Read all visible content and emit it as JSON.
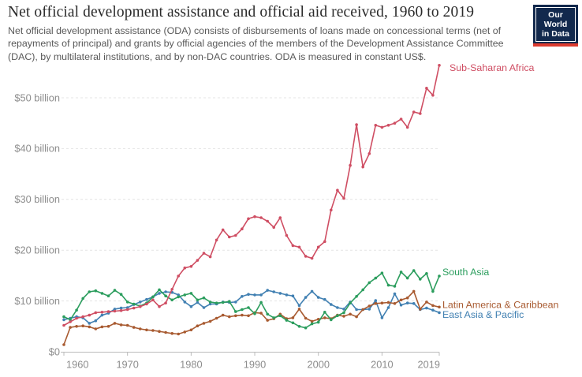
{
  "header": {
    "title": "Net official development assistance and official aid received, 1960 to 2019",
    "subtitle_lines": [
      "Net official development assistance (ODA) consists of disbursements of loans made on concessional terms (net of",
      "repayments of principal) and grants by official agencies of the members of the Development Assistance Committee",
      "(DAC), by multilateral institutions, and by non-DAC countries. ODA is measured in constant US$."
    ]
  },
  "logo": {
    "line1": "Our World",
    "line2": "in Data",
    "bg_color": "#12294d",
    "stripe_color": "#dc3b2f"
  },
  "chart_data": {
    "type": "line",
    "title": "Net official development assistance and official aid received, 1960 to 2019",
    "xlabel": "",
    "ylabel": "",
    "unit": "billion constant US$",
    "xlim": [
      1960,
      2019
    ],
    "ylim": [
      0,
      57
    ],
    "grid": "horizontal dashed",
    "legend_position": "right edge of lines",
    "x": [
      1960,
      1961,
      1962,
      1963,
      1964,
      1965,
      1966,
      1967,
      1968,
      1969,
      1970,
      1971,
      1972,
      1973,
      1974,
      1975,
      1976,
      1977,
      1978,
      1979,
      1980,
      1981,
      1982,
      1983,
      1984,
      1985,
      1986,
      1987,
      1988,
      1989,
      1990,
      1991,
      1992,
      1993,
      1994,
      1995,
      1996,
      1997,
      1998,
      1999,
      2000,
      2001,
      2002,
      2003,
      2004,
      2005,
      2006,
      2007,
      2008,
      2009,
      2010,
      2011,
      2012,
      2013,
      2014,
      2015,
      2016,
      2017,
      2018,
      2019
    ],
    "x_ticks": [
      {
        "year": 1960,
        "label": "1960"
      },
      {
        "year": 1970,
        "label": "1970"
      },
      {
        "year": 1980,
        "label": "1980"
      },
      {
        "year": 1990,
        "label": "1990"
      },
      {
        "year": 2000,
        "label": "2000"
      },
      {
        "year": 2010,
        "label": "2010"
      },
      {
        "year": 2019,
        "label": "2019"
      }
    ],
    "y_ticks": [
      {
        "value": 0,
        "label": "$0"
      },
      {
        "value": 10,
        "label": "$10 billion"
      },
      {
        "value": 20,
        "label": "$20 billion"
      },
      {
        "value": 30,
        "label": "$30 billion"
      },
      {
        "value": 40,
        "label": "$40 billion"
      },
      {
        "value": 50,
        "label": "$50 billion"
      }
    ],
    "series": [
      {
        "name": "Sub-Saharan Africa",
        "color": "#cf4e63",
        "values": [
          5.2,
          5.9,
          6.6,
          6.9,
          7.2,
          7.7,
          7.8,
          7.9,
          8.0,
          8.1,
          8.3,
          8.6,
          8.9,
          9.4,
          10.2,
          8.9,
          9.6,
          12.3,
          14.9,
          16.5,
          16.8,
          18.0,
          19.4,
          18.7,
          22.0,
          24.0,
          22.6,
          22.9,
          24.2,
          26.2,
          26.6,
          26.4,
          25.7,
          24.5,
          26.4,
          22.9,
          20.9,
          20.6,
          18.8,
          18.4,
          20.6,
          21.7,
          27.9,
          31.8,
          30.2,
          36.7,
          44.7,
          36.4,
          39.0,
          44.6,
          44.2,
          44.6,
          45.0,
          45.8,
          44.2,
          47.2,
          46.9,
          51.9,
          50.5,
          56.4
        ]
      },
      {
        "name": "South Asia",
        "color": "#2b9d5d",
        "values": [
          6.9,
          6.3,
          8.2,
          10.5,
          11.8,
          12.0,
          11.5,
          11.0,
          12.1,
          11.3,
          9.8,
          9.4,
          9.0,
          9.6,
          10.8,
          12.2,
          11.0,
          10.2,
          10.8,
          11.2,
          11.5,
          10.2,
          10.6,
          9.8,
          9.6,
          9.7,
          9.9,
          7.9,
          8.3,
          8.7,
          7.5,
          9.7,
          7.4,
          6.7,
          7.1,
          6.2,
          5.7,
          5.0,
          4.7,
          5.5,
          5.8,
          7.8,
          6.3,
          7.1,
          7.7,
          9.6,
          10.9,
          12.2,
          13.6,
          14.5,
          15.5,
          13.1,
          12.9,
          15.7,
          14.5,
          16.0,
          14.3,
          15.4,
          11.9,
          14.9
        ]
      },
      {
        "name": "Latin America & Caribbean",
        "color": "#a85a30",
        "values": [
          1.4,
          4.8,
          5.0,
          5.1,
          4.9,
          4.5,
          4.9,
          5.0,
          5.6,
          5.3,
          5.2,
          4.8,
          4.5,
          4.3,
          4.2,
          4.0,
          3.8,
          3.6,
          3.5,
          3.9,
          4.3,
          5.1,
          5.6,
          6.0,
          6.6,
          7.2,
          6.9,
          7.1,
          7.2,
          7.1,
          7.7,
          7.6,
          6.2,
          6.5,
          7.4,
          6.5,
          6.7,
          8.4,
          6.6,
          6.0,
          6.4,
          6.7,
          6.5,
          7.2,
          7.0,
          7.4,
          6.9,
          8.3,
          9.0,
          9.5,
          9.6,
          9.7,
          9.5,
          10.2,
          10.6,
          11.9,
          8.4,
          9.8,
          9.1,
          8.8
        ]
      },
      {
        "name": "East Asia & Pacific",
        "color": "#4180b2",
        "values": [
          6.3,
          6.6,
          6.9,
          6.7,
          5.6,
          6.1,
          7.2,
          7.6,
          8.4,
          8.6,
          8.7,
          9.3,
          9.8,
          10.3,
          10.8,
          11.5,
          11.8,
          11.7,
          11.2,
          9.8,
          8.9,
          9.7,
          8.7,
          9.4,
          9.4,
          9.8,
          9.7,
          9.8,
          10.9,
          11.3,
          11.2,
          11.2,
          12.1,
          11.8,
          11.5,
          11.2,
          11.0,
          9.1,
          10.7,
          11.9,
          10.7,
          10.3,
          9.3,
          8.7,
          8.4,
          9.8,
          8.3,
          8.3,
          8.4,
          10.1,
          6.7,
          8.7,
          11.4,
          9.2,
          9.6,
          9.5,
          8.3,
          8.6,
          8.2,
          7.7
        ]
      }
    ]
  },
  "style": {
    "gridline_color": "#e4e4e4",
    "axis_color": "#bbbbbb",
    "tick_text_color": "#8d8d8d"
  }
}
